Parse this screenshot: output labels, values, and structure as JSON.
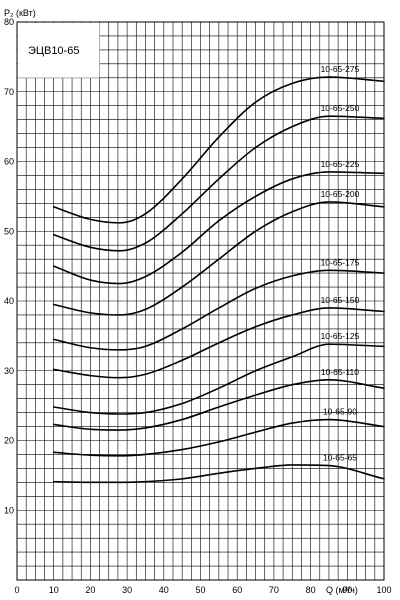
{
  "chart_data": {
    "type": "line",
    "title": "ЭЦВ10-65",
    "ylabel": "P₂ (кВт)",
    "xlabel": "Q (м³/ч)",
    "xlim": [
      0,
      100
    ],
    "ylim": [
      0,
      80
    ],
    "x_tick_labels": [
      "0",
      "10",
      "20",
      "30",
      "40",
      "50",
      "60",
      "70",
      "80",
      "90",
      "100"
    ],
    "y_tick_labels": [
      "10",
      "20",
      "30",
      "40",
      "50",
      "60",
      "70",
      "80"
    ],
    "grid": true,
    "series": [
      {
        "name": "10-65-275",
        "x": [
          10,
          20,
          28,
          35,
          45,
          55,
          65,
          75,
          85,
          100
        ],
        "y": [
          53.5,
          51.7,
          51.2,
          52.5,
          57.5,
          63.5,
          68.5,
          71.2,
          72.1,
          71.5
        ]
      },
      {
        "name": "10-65-250",
        "x": [
          10,
          20,
          28,
          35,
          45,
          55,
          65,
          75,
          85,
          100
        ],
        "y": [
          49.5,
          47.7,
          47.2,
          48.3,
          52.5,
          57.5,
          62.0,
          65.0,
          66.5,
          66.2
        ]
      },
      {
        "name": "10-65-225",
        "x": [
          10,
          20,
          28,
          35,
          45,
          55,
          65,
          75,
          85,
          100
        ],
        "y": [
          45.0,
          43.0,
          42.5,
          43.5,
          47.0,
          51.5,
          55.0,
          57.5,
          58.5,
          58.3
        ]
      },
      {
        "name": "10-65-200",
        "x": [
          10,
          20,
          28,
          35,
          45,
          55,
          65,
          75,
          85,
          100
        ],
        "y": [
          39.5,
          38.3,
          38.0,
          38.8,
          42.0,
          46.0,
          50.0,
          52.8,
          54.2,
          53.5
        ]
      },
      {
        "name": "10-65-175",
        "x": [
          10,
          20,
          28,
          35,
          45,
          55,
          65,
          75,
          85,
          100
        ],
        "y": [
          34.5,
          33.3,
          33.0,
          33.5,
          36.0,
          39.0,
          41.8,
          43.6,
          44.4,
          44.0
        ]
      },
      {
        "name": "10-65-150",
        "x": [
          10,
          20,
          28,
          35,
          45,
          55,
          65,
          75,
          85,
          100
        ],
        "y": [
          30.2,
          29.3,
          29.0,
          29.5,
          31.5,
          34.0,
          36.3,
          38.0,
          39.0,
          38.5
        ]
      },
      {
        "name": "10-65-125",
        "x": [
          10,
          20,
          28,
          35,
          45,
          55,
          65,
          75,
          85,
          100
        ],
        "y": [
          24.8,
          24.0,
          23.8,
          24.0,
          25.3,
          27.5,
          30.0,
          32.0,
          33.8,
          33.5
        ]
      },
      {
        "name": "10-65-110",
        "x": [
          10,
          20,
          28,
          35,
          45,
          55,
          65,
          75,
          85,
          100
        ],
        "y": [
          22.3,
          21.6,
          21.5,
          21.8,
          23.0,
          24.8,
          26.5,
          28.0,
          28.7,
          27.5
        ]
      },
      {
        "name": "10-65-90",
        "x": [
          10,
          20,
          28,
          35,
          45,
          55,
          65,
          75,
          85,
          100
        ],
        "y": [
          18.3,
          17.9,
          17.8,
          18.0,
          18.7,
          19.8,
          21.2,
          22.5,
          23.0,
          22.0
        ]
      },
      {
        "name": "10-65-65",
        "x": [
          10,
          20,
          28,
          35,
          45,
          55,
          65,
          75,
          85,
          100
        ],
        "y": [
          14.1,
          14.0,
          14.0,
          14.1,
          14.5,
          15.3,
          16.0,
          16.5,
          16.4,
          14.5
        ]
      }
    ]
  }
}
